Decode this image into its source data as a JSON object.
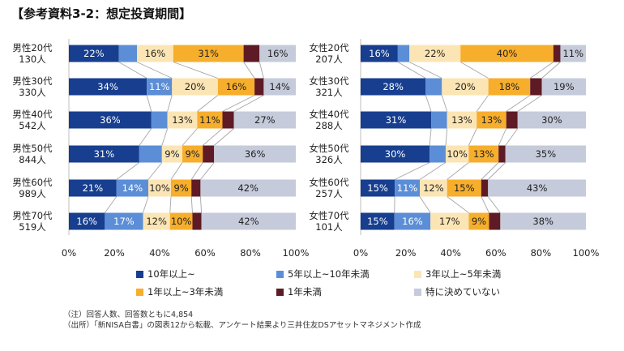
{
  "title": "【参考資料3-2：想定投資期間】",
  "chart_data": [
    {
      "type": "bar",
      "orientation": "horizontal",
      "stacked": true,
      "categories": [
        [
          "男性20代",
          "130人"
        ],
        [
          "男性30代",
          "330人"
        ],
        [
          "男性40代",
          "542人"
        ],
        [
          "男性50代",
          "844人"
        ],
        [
          "男性60代",
          "989人"
        ],
        [
          "男性70代",
          "519人"
        ]
      ],
      "series": [
        {
          "name": "10年以上~",
          "values": [
            22,
            34,
            36,
            31,
            21,
            16
          ]
        },
        {
          "name": "5年以上~10年未満",
          "values": [
            8,
            11,
            7,
            10,
            14,
            17
          ]
        },
        {
          "name": "3年以上~5年未満",
          "values": [
            16,
            20,
            13,
            9,
            10,
            12
          ]
        },
        {
          "name": "1年以上~3年未満",
          "values": [
            31,
            16,
            11,
            9,
            9,
            10
          ]
        },
        {
          "name": "1年未満",
          "values": [
            7,
            4,
            5,
            5,
            4,
            4
          ]
        },
        {
          "name": "特に決めていない",
          "values": [
            16,
            14,
            27,
            36,
            42,
            42
          ]
        }
      ],
      "data_labels": [
        [
          "22%",
          "",
          "16%",
          "31%",
          "",
          "16%"
        ],
        [
          "34%",
          "11%",
          "20%",
          "16%",
          "",
          "14%"
        ],
        [
          "36%",
          "",
          "13%",
          "11%",
          "",
          "27%"
        ],
        [
          "31%",
          "",
          "9%",
          "9%",
          "",
          "36%"
        ],
        [
          "21%",
          "14%",
          "10%",
          "9%",
          "",
          "42%"
        ],
        [
          "16%",
          "17%",
          "12%",
          "10%",
          "",
          "42%"
        ]
      ],
      "xlim": [
        0,
        100
      ],
      "xticks": [
        "0%",
        "20%",
        "40%",
        "60%",
        "80%",
        "100%"
      ]
    },
    {
      "type": "bar",
      "orientation": "horizontal",
      "stacked": true,
      "categories": [
        [
          "女性20代",
          "207人"
        ],
        [
          "女性30代",
          "321人"
        ],
        [
          "女性40代",
          "288人"
        ],
        [
          "女性50代",
          "326人"
        ],
        [
          "女性60代",
          "257人"
        ],
        [
          "女性70代",
          "101人"
        ]
      ],
      "series": [
        {
          "name": "10年以上~",
          "values": [
            16,
            28,
            31,
            30,
            15,
            15
          ]
        },
        {
          "name": "5年以上~10年未満",
          "values": [
            5,
            7,
            7,
            7,
            11,
            16
          ]
        },
        {
          "name": "3年以上~5年未満",
          "values": [
            22,
            20,
            13,
            10,
            12,
            17
          ]
        },
        {
          "name": "1年以上~3年未満",
          "values": [
            40,
            18,
            13,
            13,
            15,
            9
          ]
        },
        {
          "name": "1年未満",
          "values": [
            3,
            5,
            5,
            3,
            3,
            5
          ]
        },
        {
          "name": "特に決めていない",
          "values": [
            11,
            19,
            30,
            35,
            43,
            38
          ]
        }
      ],
      "data_labels": [
        [
          "16%",
          "",
          "22%",
          "40%",
          "",
          "11%"
        ],
        [
          "28%",
          "",
          "20%",
          "18%",
          "",
          "19%"
        ],
        [
          "31%",
          "",
          "13%",
          "13%",
          "",
          "30%"
        ],
        [
          "30%",
          "",
          "10%",
          "13%",
          "",
          "35%"
        ],
        [
          "15%",
          "11%",
          "12%",
          "15%",
          "",
          "43%"
        ],
        [
          "15%",
          "16%",
          "17%",
          "9%",
          "",
          "38%"
        ]
      ],
      "xlim": [
        0,
        100
      ],
      "xticks": [
        "0%",
        "20%",
        "40%",
        "60%",
        "80%",
        "100%"
      ]
    }
  ],
  "legend": [
    {
      "label": "10年以上~",
      "color": "#173E8F"
    },
    {
      "label": "5年以上~10年未満",
      "color": "#5B8ED6"
    },
    {
      "label": "3年以上~5年未満",
      "color": "#FCE5B4"
    },
    {
      "label": "1年以上~3年未満",
      "color": "#F7AE2C"
    },
    {
      "label": "1年未満",
      "color": "#5E1B25"
    },
    {
      "label": "特に決めていない",
      "color": "#C6CBDB"
    }
  ],
  "label_colors": [
    "#ffffff",
    "#ffffff",
    "#222222",
    "#222222",
    "#ffffff",
    "#222222"
  ],
  "notes": [
    "（注）回答人数、回答数ともに4,854",
    "（出所）「新NISA白書」の図表12から転載、アンケート結果より三井住友DSアセットマネジメント作成"
  ]
}
